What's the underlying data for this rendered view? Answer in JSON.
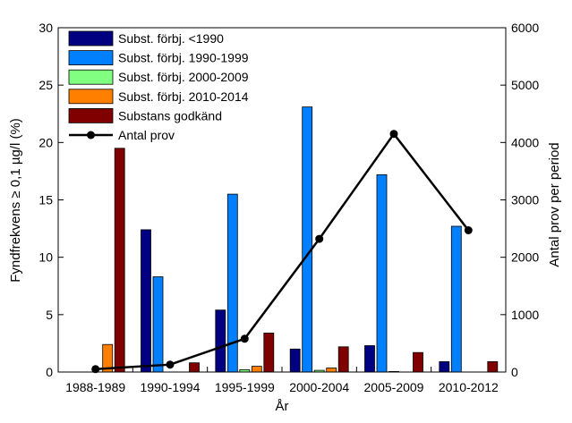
{
  "chart_data": {
    "type": "bar",
    "categories": [
      "1988-1989",
      "1990-1994",
      "1995-1999",
      "2000-2004",
      "2005-2009",
      "2010-2012"
    ],
    "xlabel": "År",
    "ylabel": "Fyndfrekvens ≥ 0,1 µg/l (%)",
    "ylabel_right": "Antal prov per period",
    "ylim": [
      0,
      30
    ],
    "ylim_right": [
      0,
      6000
    ],
    "yticks": [
      0,
      5,
      10,
      15,
      20,
      25,
      30
    ],
    "yticks_right": [
      0,
      1000,
      2000,
      3000,
      4000,
      5000,
      6000
    ],
    "legend_position": "top-left",
    "series": [
      {
        "name": "Subst. förbj. <1990",
        "color": "#000080",
        "values": [
          null,
          12.4,
          5.4,
          2.0,
          2.3,
          0.9
        ]
      },
      {
        "name": "Subst. förbj. 1990-1999",
        "color": "#0080ff",
        "values": [
          null,
          8.3,
          15.5,
          23.1,
          17.2,
          12.7
        ]
      },
      {
        "name": "Subst. förbj. 2000-2009",
        "color": "#80ff80",
        "values": [
          null,
          null,
          0.2,
          0.15,
          0.05,
          null
        ]
      },
      {
        "name": "Subst. förbj. 2010-2014",
        "color": "#ff8000",
        "values": [
          2.4,
          null,
          0.5,
          0.35,
          null,
          null
        ]
      },
      {
        "name": "Substans godkänd",
        "color": "#800000",
        "values": [
          19.5,
          0.8,
          3.4,
          2.2,
          1.7,
          0.9
        ]
      }
    ],
    "line_series": {
      "name": "Antal prov",
      "color": "#000000",
      "axis": "right",
      "values": [
        50,
        130,
        580,
        2320,
        4150,
        2470
      ]
    }
  }
}
